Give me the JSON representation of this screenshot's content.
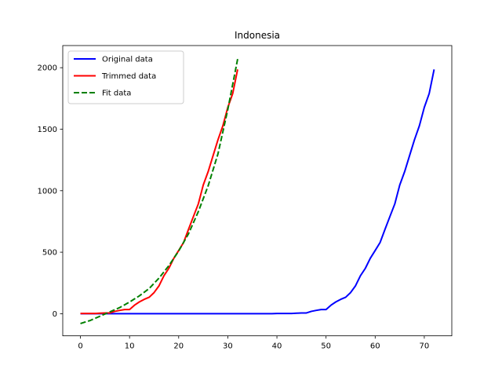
{
  "chart_data": {
    "type": "line",
    "title": "Indonesia",
    "xlabel": "",
    "ylabel": "",
    "xlim": [
      -3.6,
      75.6
    ],
    "ylim": [
      -180,
      2180
    ],
    "xticks": [
      0,
      10,
      20,
      30,
      40,
      50,
      60,
      70
    ],
    "yticks": [
      0,
      500,
      1000,
      1500,
      2000
    ],
    "grid": false,
    "legend_position": "top-left",
    "series": [
      {
        "name": "Original data",
        "color": "#0000ff",
        "style": "solid",
        "x": [
          0,
          5,
          10,
          15,
          20,
          25,
          30,
          35,
          39,
          40,
          41,
          42,
          43,
          44,
          45,
          46,
          47,
          48,
          49,
          50,
          51,
          52,
          53,
          54,
          55,
          56,
          57,
          58,
          59,
          60,
          61,
          62,
          63,
          64,
          65,
          66,
          67,
          68,
          69,
          70,
          71,
          72
        ],
        "y": [
          0,
          0,
          0,
          0,
          0,
          0,
          0,
          0,
          0,
          2,
          2,
          2,
          2,
          4,
          6,
          6,
          19,
          27,
          34,
          34,
          69,
          96,
          117,
          134,
          172,
          227,
          309,
          369,
          450,
          514,
          579,
          686,
          790,
          893,
          1046,
          1155,
          1285,
          1414,
          1528,
          1677,
          1790,
          1986
        ]
      },
      {
        "name": "Trimmed data",
        "color": "#ff0000",
        "style": "solid",
        "x": [
          0,
          1,
          2,
          3,
          4,
          5,
          6,
          7,
          8,
          9,
          10,
          11,
          12,
          13,
          14,
          15,
          16,
          17,
          18,
          19,
          20,
          21,
          22,
          23,
          24,
          25,
          26,
          27,
          28,
          29,
          30,
          31,
          32
        ],
        "y": [
          2,
          2,
          2,
          2,
          4,
          6,
          6,
          19,
          27,
          34,
          34,
          69,
          96,
          117,
          134,
          172,
          227,
          309,
          369,
          450,
          514,
          579,
          686,
          790,
          893,
          1046,
          1155,
          1285,
          1414,
          1528,
          1677,
          1790,
          1986
        ]
      },
      {
        "name": "Fit data",
        "color": "#008000",
        "style": "dashed",
        "x": [
          0,
          2,
          4,
          6,
          8,
          10,
          12,
          14,
          16,
          18,
          20,
          22,
          24,
          26,
          28,
          30,
          32
        ],
        "y": [
          -80,
          -55,
          -20,
          15,
          50,
          95,
          145,
          205,
          290,
          390,
          510,
          650,
          830,
          1040,
          1300,
          1660,
          2070
        ]
      }
    ]
  }
}
